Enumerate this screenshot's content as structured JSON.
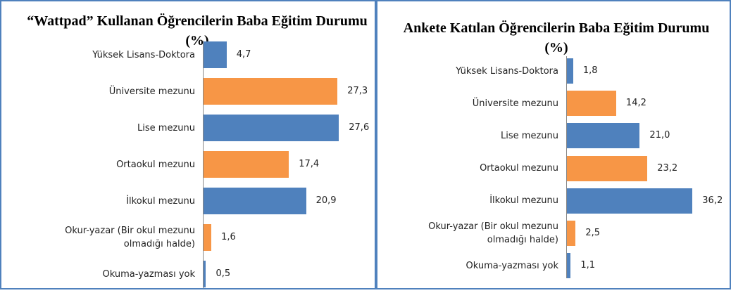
{
  "chart_data": [
    {
      "type": "bar",
      "orientation": "horizontal",
      "title": "“Wattpad” Kullanan Öğrencilerin Baba Eğitim Durumu (%)",
      "categories": [
        "Yüksek Lisans-Doktora",
        "Üniversite mezunu",
        "Lise mezunu",
        "Ortaokul mezunu",
        "İlkokul mezunu",
        "Okur-yazar (Bir okul mezunu olmadığı halde)",
        "Okuma-yazması yok"
      ],
      "values": [
        4.7,
        27.3,
        27.6,
        17.4,
        20.9,
        1.6,
        0.5
      ],
      "value_labels": [
        "4,7",
        "27,3",
        "27,6",
        "17,4",
        "20,9",
        "1,6",
        "0,5"
      ],
      "colors": [
        "#4f81bd",
        "#f79646",
        "#4f81bd",
        "#f79646",
        "#4f81bd",
        "#f79646",
        "#4f81bd"
      ],
      "xlim": [
        0,
        30
      ]
    },
    {
      "type": "bar",
      "orientation": "horizontal",
      "title": "Ankete Katılan Öğrencilerin Baba Eğitim Durumu (%)",
      "categories": [
        "Yüksek Lisans-Doktora",
        "Üniversite mezunu",
        "Lise mezunu",
        "Ortaokul mezunu",
        "İlkokul mezunu",
        "Okur-yazar (Bir okul mezunu olmadığı halde)",
        "Okuma-yazması yok"
      ],
      "values": [
        1.8,
        14.2,
        21.0,
        23.2,
        36.2,
        2.5,
        1.1
      ],
      "value_labels": [
        "1,8",
        "14,2",
        "21,0",
        "23,2",
        "36,2",
        "2,5",
        "1,1"
      ],
      "colors": [
        "#4f81bd",
        "#f79646",
        "#4f81bd",
        "#f79646",
        "#4f81bd",
        "#f79646",
        "#4f81bd"
      ],
      "xlim": [
        0,
        40
      ]
    }
  ]
}
